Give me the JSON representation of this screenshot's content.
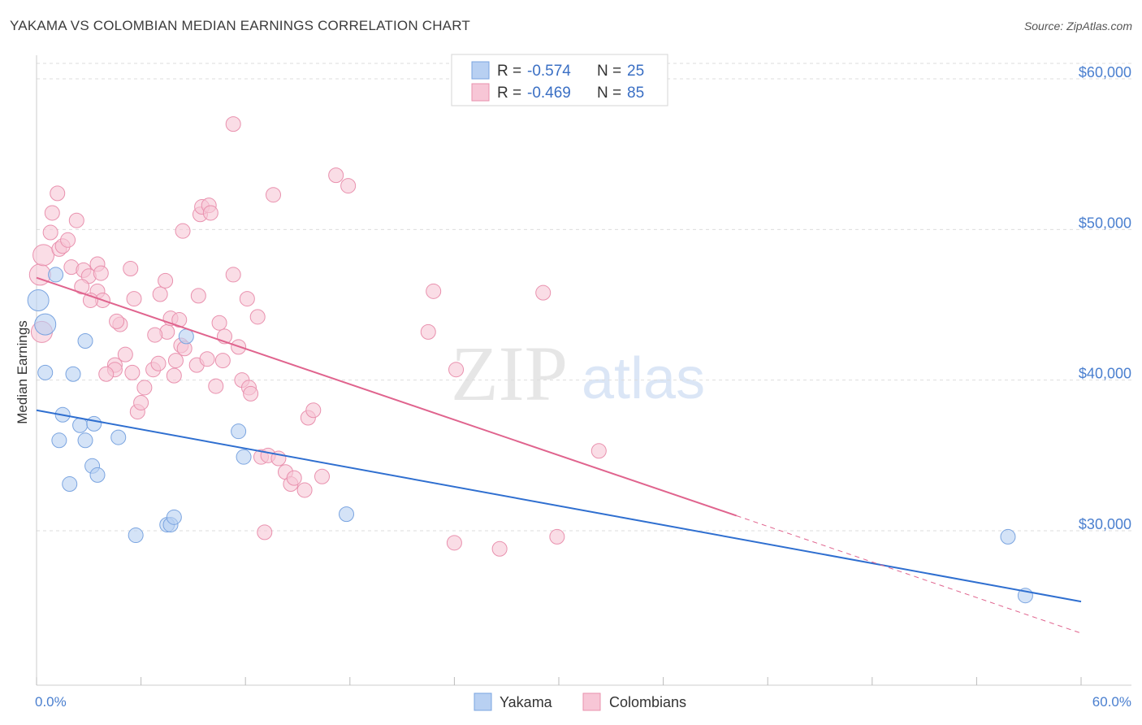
{
  "title": "YAKAMA VS COLOMBIAN MEDIAN EARNINGS CORRELATION CHART",
  "source": "Source: ZipAtlas.com",
  "colors": {
    "yakama_fill": "#b8d0f2",
    "yakama_stroke": "#7aa4e0",
    "yakama_line": "#2f6fd0",
    "colombian_fill": "#f7c6d6",
    "colombian_stroke": "#e991ae",
    "colombian_line": "#e0648e",
    "tick_label": "#4a7fcf",
    "grid": "#dddddd"
  },
  "legend": {
    "rows": [
      {
        "r_label": "R =",
        "r_value": "-0.574",
        "n_label": "N =",
        "n_value": "25"
      },
      {
        "r_label": "R =",
        "r_value": "-0.469",
        "n_label": "N =",
        "n_value": "85"
      }
    ]
  },
  "watermark": {
    "zip": "ZIP",
    "atlas": "atlas"
  },
  "chart_data": {
    "type": "scatter",
    "title": "YAKAMA VS COLOMBIAN MEDIAN EARNINGS CORRELATION CHART",
    "xlabel": "",
    "ylabel": "Median Earnings",
    "xlim": [
      0,
      60
    ],
    "ylim": [
      20000,
      62000
    ],
    "x_tick_labels": [
      "0.0%",
      "60.0%"
    ],
    "y_ticks": [
      {
        "value": 30000,
        "label": "$30,000"
      },
      {
        "value": 40000,
        "label": "$40,000"
      },
      {
        "value": 50000,
        "label": "$50,000"
      },
      {
        "value": 60000,
        "label": "$60,000"
      }
    ],
    "series": [
      {
        "name": "Yakama",
        "r": -0.574,
        "n": 25,
        "trend": {
          "x0": 0,
          "y0": 38000,
          "x1": 60,
          "y1": 25300
        },
        "points": [
          [
            0.1,
            45300
          ],
          [
            0.5,
            43700
          ],
          [
            1.1,
            47000
          ],
          [
            0.5,
            40500
          ],
          [
            2.1,
            40400
          ],
          [
            2.8,
            42600
          ],
          [
            1.5,
            37700
          ],
          [
            2.5,
            37000
          ],
          [
            1.3,
            36000
          ],
          [
            2.8,
            36000
          ],
          [
            3.3,
            37100
          ],
          [
            4.7,
            36200
          ],
          [
            3.2,
            34300
          ],
          [
            3.5,
            33700
          ],
          [
            1.9,
            33100
          ],
          [
            5.7,
            29700
          ],
          [
            7.5,
            30400
          ],
          [
            7.7,
            30400
          ],
          [
            7.9,
            30900
          ],
          [
            8.6,
            42900
          ],
          [
            11.6,
            36600
          ],
          [
            11.9,
            34900
          ],
          [
            17.8,
            31100
          ],
          [
            55.8,
            29600
          ],
          [
            56.8,
            25700
          ]
        ]
      },
      {
        "name": "Colombians",
        "r": -0.469,
        "n": 85,
        "trend": {
          "x0": 0,
          "y0": 46800,
          "x1": 40.2,
          "y1": 31000
        },
        "trend_dashed": {
          "x0": 40.2,
          "y0": 31000,
          "x1": 60,
          "y1": 23200
        },
        "points": [
          [
            0.3,
            43200
          ],
          [
            0.2,
            47000
          ],
          [
            0.4,
            48300
          ],
          [
            0.8,
            49800
          ],
          [
            0.9,
            51100
          ],
          [
            1.2,
            52400
          ],
          [
            1.3,
            48700
          ],
          [
            1.5,
            48900
          ],
          [
            1.8,
            49300
          ],
          [
            2.3,
            50600
          ],
          [
            2.0,
            47500
          ],
          [
            2.7,
            47300
          ],
          [
            3.0,
            46900
          ],
          [
            2.6,
            46200
          ],
          [
            3.5,
            47700
          ],
          [
            3.7,
            47100
          ],
          [
            3.5,
            45900
          ],
          [
            3.8,
            45300
          ],
          [
            3.1,
            45300
          ],
          [
            4.8,
            43700
          ],
          [
            4.6,
            43900
          ],
          [
            5.1,
            41700
          ],
          [
            4.5,
            41000
          ],
          [
            4.5,
            40700
          ],
          [
            4.0,
            40400
          ],
          [
            5.5,
            40500
          ],
          [
            5.8,
            37900
          ],
          [
            6.0,
            38500
          ],
          [
            5.6,
            45400
          ],
          [
            5.4,
            47400
          ],
          [
            6.2,
            39500
          ],
          [
            6.7,
            40700
          ],
          [
            7.0,
            41100
          ],
          [
            7.1,
            45700
          ],
          [
            7.4,
            46600
          ],
          [
            7.5,
            43200
          ],
          [
            7.7,
            44100
          ],
          [
            7.9,
            40300
          ],
          [
            8.0,
            41300
          ],
          [
            8.3,
            42300
          ],
          [
            8.5,
            42100
          ],
          [
            8.4,
            49900
          ],
          [
            9.2,
            41000
          ],
          [
            9.3,
            45600
          ],
          [
            9.4,
            51000
          ],
          [
            9.5,
            51500
          ],
          [
            9.9,
            51600
          ],
          [
            10.0,
            51100
          ],
          [
            9.8,
            41400
          ],
          [
            10.3,
            39600
          ],
          [
            10.5,
            43800
          ],
          [
            10.7,
            41300
          ],
          [
            10.8,
            42900
          ],
          [
            11.3,
            47000
          ],
          [
            11.6,
            42200
          ],
          [
            11.8,
            40000
          ],
          [
            12.2,
            39500
          ],
          [
            12.3,
            39100
          ],
          [
            12.1,
            45400
          ],
          [
            12.7,
            44200
          ],
          [
            12.9,
            34900
          ],
          [
            13.3,
            35000
          ],
          [
            13.9,
            34800
          ],
          [
            14.3,
            33900
          ],
          [
            14.6,
            33100
          ],
          [
            14.8,
            33500
          ],
          [
            15.4,
            32700
          ],
          [
            15.6,
            37500
          ],
          [
            15.9,
            38000
          ],
          [
            16.4,
            33600
          ],
          [
            13.1,
            29900
          ],
          [
            11.3,
            57000
          ],
          [
            13.6,
            52300
          ],
          [
            17.2,
            53600
          ],
          [
            17.9,
            52900
          ],
          [
            22.5,
            43200
          ],
          [
            22.8,
            45900
          ],
          [
            24.1,
            40700
          ],
          [
            24.0,
            29200
          ],
          [
            26.6,
            28800
          ],
          [
            29.1,
            45800
          ],
          [
            29.9,
            29600
          ],
          [
            32.3,
            35300
          ],
          [
            8.2,
            44000
          ],
          [
            6.8,
            43000
          ]
        ]
      }
    ],
    "bottom_legend": [
      "Yakama",
      "Colombians"
    ]
  }
}
